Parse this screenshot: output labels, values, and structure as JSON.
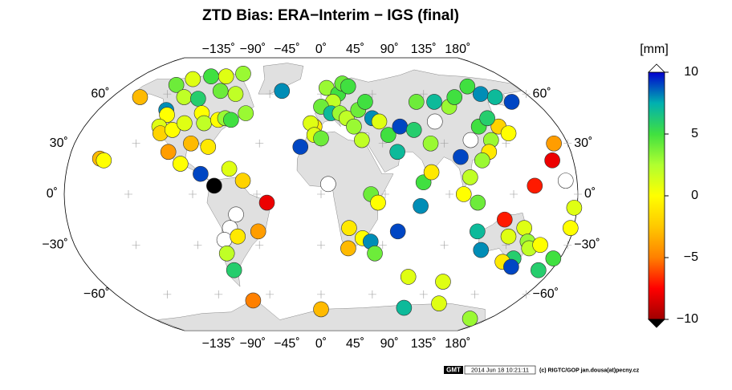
{
  "chart_data": {
    "type": "map",
    "title": "ZTD Bias:  ERA−Interim − IGS (final)",
    "colorbar_label": "[mm]",
    "clim": [
      -10,
      10
    ],
    "cticks": [
      10,
      5,
      0,
      {
        "value": -5,
        "label": "−5"
      },
      {
        "value": -10,
        "label": "−10"
      }
    ],
    "colormap": [
      "#a00000",
      "#ff0000",
      "#ff8000",
      "#ffc800",
      "#ffff00",
      "#b0ff30",
      "#40e040",
      "#00b0b0",
      "#0000d0"
    ],
    "over_color": "#ffffff",
    "under_color": "#000000",
    "xlim": [
      -180,
      180
    ],
    "ylim": [
      -90,
      90
    ],
    "xticks": [
      {
        "value": -135,
        "label": "−135˚"
      },
      {
        "value": -90,
        "label": "−90˚"
      },
      {
        "value": -45,
        "label": "−45˚"
      },
      {
        "value": 0,
        "label": "0˚"
      },
      {
        "value": 45,
        "label": "45˚"
      },
      {
        "value": 90,
        "label": "90˚"
      },
      {
        "value": 135,
        "label": "135˚"
      },
      {
        "value": 180,
        "label": "180˚"
      }
    ],
    "yticks": [
      {
        "value": 60,
        "label": "60˚"
      },
      {
        "value": 30,
        "label": "30˚"
      },
      {
        "value": 0,
        "label": "0˚"
      },
      {
        "value": -30,
        "label": "−30˚"
      },
      {
        "value": -60,
        "label": "−60˚"
      }
    ],
    "x": [
      -158,
      -155,
      -156,
      -135,
      -125,
      -110,
      -95,
      -80,
      -118,
      -105,
      -90,
      -75,
      -125,
      -122,
      -123,
      -120,
      -112,
      -105,
      -95,
      -90,
      -80,
      -75,
      -70,
      -60,
      -95,
      -82,
      -110,
      -100,
      -85,
      -75,
      -65,
      -55,
      -38,
      -35,
      -60,
      -65,
      -70,
      -60,
      -45,
      -70,
      -68,
      -62,
      5,
      15,
      20,
      25,
      10,
      0,
      8,
      15,
      -5,
      -8,
      20,
      25,
      30,
      37,
      40,
      -15,
      -5,
      30,
      50,
      55,
      60,
      70,
      45,
      0,
      5,
      35,
      40,
      20,
      30,
      20,
      36,
      40,
      55,
      70,
      72,
      78,
      80,
      80,
      95,
      105,
      115,
      120,
      110,
      100,
      88,
      125,
      135,
      130,
      140,
      140,
      135,
      150,
      160,
      121,
      115,
      105,
      100,
      110,
      150,
      172,
      165,
      170,
      112,
      130,
      118,
      135,
      145,
      150,
      145,
      153,
      138,
      147,
      160,
      175,
      170,
      178,
      178,
      70,
      80,
      110,
      160,
      0,
      100
    ],
    "y": [
      21,
      20,
      58,
      66,
      70,
      72,
      72,
      74,
      58,
      57,
      62,
      60,
      50,
      47,
      40,
      36,
      38,
      42,
      48,
      42,
      44,
      45,
      44,
      48,
      30,
      28,
      25,
      18,
      12,
      5,
      15,
      8,
      -5,
      62,
      -12,
      -20,
      -27,
      -25,
      -22,
      -35,
      -45,
      -64,
      64,
      60,
      67,
      65,
      55,
      52,
      48,
      48,
      40,
      42,
      45,
      40,
      50,
      55,
      45,
      28,
      35,
      32,
      35,
      25,
      40,
      38,
      43,
      33,
      6,
      0,
      -5,
      -20,
      -26,
      -32,
      -28,
      -35,
      -22,
      -7,
      7,
      13,
      30,
      55,
      55,
      52,
      58,
      40,
      32,
      22,
      43,
      32,
      40,
      45,
      36,
      60,
      65,
      58,
      55,
      25,
      20,
      10,
      0,
      -5,
      5,
      8,
      20,
      30,
      -22,
      -15,
      -33,
      -25,
      -20,
      -28,
      -38,
      -32,
      -40,
      -43,
      -30,
      -38,
      -45,
      -20,
      -8,
      -49,
      -69,
      -66,
      -77,
      -70,
      -52
    ],
    "values": [
      -3,
      0,
      -3,
      4,
      1,
      5,
      1,
      3,
      2,
      6,
      4,
      2,
      8,
      0,
      1,
      -2,
      0,
      1,
      0,
      2,
      0,
      3,
      5,
      3,
      -3,
      -1,
      -4,
      0,
      9,
      -12,
      1,
      -2,
      -8,
      8,
      11,
      11,
      11,
      -1,
      -4,
      2,
      6,
      -5,
      3,
      5,
      4,
      5,
      2,
      4,
      7,
      3,
      -1,
      1,
      2,
      3,
      4,
      5,
      8,
      9,
      1,
      2,
      5,
      7,
      9,
      6,
      1,
      4,
      11,
      4,
      0,
      -1,
      0,
      -3,
      8,
      4,
      9,
      8,
      5,
      -1,
      3,
      4,
      7,
      3,
      5,
      5,
      11,
      9,
      11,
      3,
      -2,
      6,
      0,
      8,
      5,
      7,
      9,
      -1,
      3,
      2,
      0,
      4,
      -7,
      11,
      -8,
      -4,
      7,
      -7,
      8,
      1,
      1,
      3,
      6,
      2,
      -1,
      9,
      0,
      5,
      6,
      0,
      1,
      1,
      7,
      1,
      3,
      -3,
      1
    ],
    "footer": {
      "logo": "GMT",
      "timestamp": "2014 Jun 18 10:21:11",
      "credit": "(c) RIGTC/GOP jan.dousa(at)pecny.cz"
    }
  }
}
